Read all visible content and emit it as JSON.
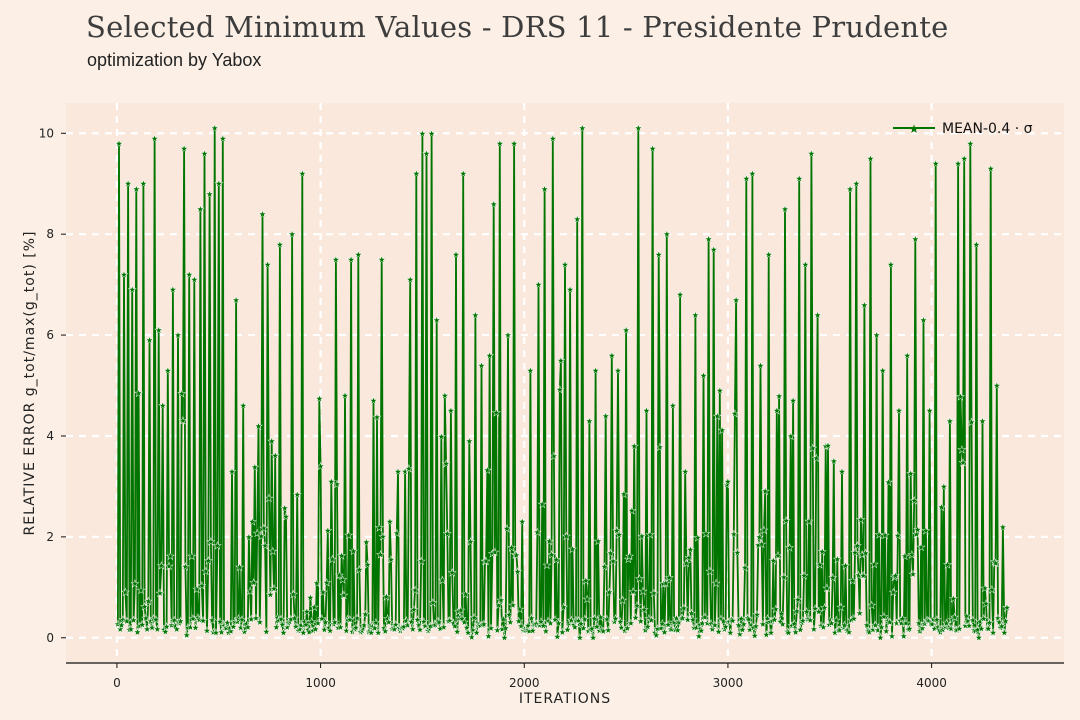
{
  "header": {
    "title": "Selected Minimum Values - DRS 11 - Presidente Prudente",
    "subtitle": "optimization by Yabox"
  },
  "chart_data": {
    "type": "line",
    "xlabel": "ITERATIONS",
    "ylabel": "RELATIVE ERROR g_tot/max(g_tot) [%]",
    "xlim": [
      -250,
      4650
    ],
    "ylim": [
      -0.5,
      10.6
    ],
    "xticks": [
      0,
      1000,
      2000,
      3000,
      4000
    ],
    "yticks": [
      0,
      2,
      4,
      6,
      8,
      10
    ],
    "grid": true,
    "legend": {
      "position": "top-right"
    },
    "colors": {
      "line": "#007500",
      "marker": "#007500",
      "background": "#fae8dc",
      "grid": "#ffffff"
    },
    "series": [
      {
        "name": "MEAN-0.4 · σ",
        "peaks": [
          [
            10,
            9.8
          ],
          [
            35,
            7.2
          ],
          [
            55,
            9.0
          ],
          [
            75,
            6.9
          ],
          [
            95,
            8.9
          ],
          [
            130,
            9.0
          ],
          [
            160,
            5.9
          ],
          [
            185,
            9.9
          ],
          [
            205,
            6.1
          ],
          [
            225,
            4.6
          ],
          [
            250,
            5.3
          ],
          [
            275,
            6.9
          ],
          [
            300,
            6.0
          ],
          [
            330,
            9.7
          ],
          [
            355,
            7.2
          ],
          [
            380,
            7.1
          ],
          [
            410,
            8.5
          ],
          [
            430,
            9.6
          ],
          [
            455,
            8.8
          ],
          [
            480,
            10.1
          ],
          [
            500,
            9.0
          ],
          [
            520,
            9.9
          ],
          [
            565,
            3.3
          ],
          [
            585,
            6.7
          ],
          [
            620,
            4.6
          ],
          [
            665,
            2.3
          ],
          [
            695,
            4.2
          ],
          [
            715,
            8.4
          ],
          [
            740,
            7.4
          ],
          [
            760,
            3.9
          ],
          [
            800,
            7.8
          ],
          [
            830,
            2.4
          ],
          [
            860,
            8.0
          ],
          [
            910,
            9.2
          ],
          [
            950,
            0.8
          ],
          [
            1000,
            3.4
          ],
          [
            1030,
            1.1
          ],
          [
            1075,
            7.5
          ],
          [
            1120,
            4.8
          ],
          [
            1150,
            7.5
          ],
          [
            1185,
            7.6
          ],
          [
            1225,
            1.9
          ],
          [
            1260,
            4.7
          ],
          [
            1300,
            7.5
          ],
          [
            1340,
            2.3
          ],
          [
            1380,
            3.3
          ],
          [
            1415,
            3.3
          ],
          [
            1440,
            7.1
          ],
          [
            1470,
            9.2
          ],
          [
            1500,
            10.0
          ],
          [
            1520,
            9.6
          ],
          [
            1545,
            10.0
          ],
          [
            1570,
            6.3
          ],
          [
            1610,
            4.8
          ],
          [
            1640,
            4.5
          ],
          [
            1665,
            7.6
          ],
          [
            1700,
            9.2
          ],
          [
            1730,
            3.9
          ],
          [
            1760,
            6.4
          ],
          [
            1790,
            5.4
          ],
          [
            1830,
            5.6
          ],
          [
            1850,
            8.6
          ],
          [
            1880,
            9.8
          ],
          [
            1920,
            6.0
          ],
          [
            1950,
            9.8
          ],
          [
            1990,
            2.3
          ],
          [
            2030,
            5.3
          ],
          [
            2070,
            7.0
          ],
          [
            2100,
            8.9
          ],
          [
            2140,
            9.9
          ],
          [
            2180,
            5.5
          ],
          [
            2200,
            7.4
          ],
          [
            2225,
            6.9
          ],
          [
            2260,
            8.3
          ],
          [
            2285,
            10.1
          ],
          [
            2320,
            4.3
          ],
          [
            2350,
            5.3
          ],
          [
            2400,
            4.4
          ],
          [
            2430,
            5.6
          ],
          [
            2460,
            5.3
          ],
          [
            2500,
            6.1
          ],
          [
            2540,
            3.8
          ],
          [
            2560,
            10.1
          ],
          [
            2600,
            4.5
          ],
          [
            2630,
            9.7
          ],
          [
            2660,
            7.6
          ],
          [
            2700,
            8.0
          ],
          [
            2730,
            4.6
          ],
          [
            2765,
            6.8
          ],
          [
            2790,
            3.3
          ],
          [
            2840,
            6.4
          ],
          [
            2880,
            5.2
          ],
          [
            2905,
            7.9
          ],
          [
            2930,
            7.7
          ],
          [
            2960,
            4.9
          ],
          [
            3000,
            3.1
          ],
          [
            3040,
            6.7
          ],
          [
            3090,
            9.1
          ],
          [
            3120,
            9.2
          ],
          [
            3160,
            5.4
          ],
          [
            3200,
            7.6
          ],
          [
            3240,
            4.5
          ],
          [
            3280,
            8.5
          ],
          [
            3320,
            4.7
          ],
          [
            3350,
            9.1
          ],
          [
            3380,
            7.4
          ],
          [
            3410,
            9.6
          ],
          [
            3440,
            6.4
          ],
          [
            3480,
            3.8
          ],
          [
            3520,
            3.5
          ],
          [
            3560,
            3.3
          ],
          [
            3600,
            8.9
          ],
          [
            3630,
            9.0
          ],
          [
            3670,
            6.6
          ],
          [
            3700,
            9.5
          ],
          [
            3730,
            6.0
          ],
          [
            3760,
            5.3
          ],
          [
            3800,
            7.4
          ],
          [
            3840,
            4.5
          ],
          [
            3880,
            5.6
          ],
          [
            3920,
            7.9
          ],
          [
            3960,
            6.3
          ],
          [
            3990,
            4.5
          ],
          [
            4020,
            9.4
          ],
          [
            4060,
            3.0
          ],
          [
            4090,
            4.3
          ],
          [
            4130,
            9.4
          ],
          [
            4160,
            9.5
          ],
          [
            4190,
            9.8
          ],
          [
            4220,
            7.8
          ],
          [
            4250,
            4.3
          ],
          [
            4290,
            9.3
          ],
          [
            4320,
            5.0
          ],
          [
            4350,
            2.2
          ],
          [
            4370,
            0.6
          ]
        ],
        "last_point": [
          4370,
          0.6
        ]
      }
    ]
  }
}
